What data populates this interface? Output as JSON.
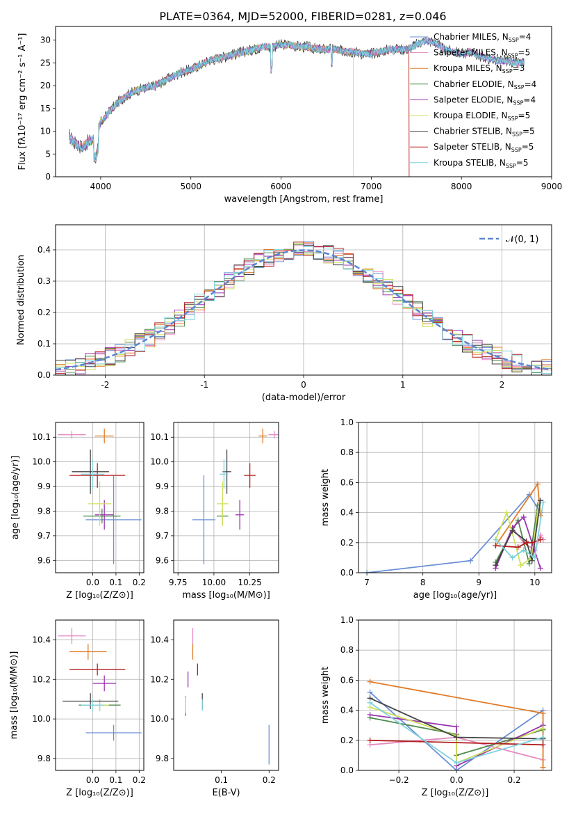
{
  "title": "PLATE=0364, MJD=52000, FIBERID=0281, z=0.046",
  "colors": {
    "Chabrier MILES": "#6b8fd6",
    "Salpeter MILES": "#e58ac0",
    "Kroupa MILES": "#e07b28",
    "Chabrier ELODIE": "#4f8a4f",
    "Salpeter ELODIE": "#9a35b0",
    "Kroupa ELODIE": "#cfe05a",
    "Chabrier STELIB": "#444444",
    "Salpeter STELIB": "#b52020",
    "Kroupa STELIB": "#7fd2dc",
    "gaussian": "#5b86d0"
  },
  "chart_data": [
    {
      "id": "spectrum",
      "type": "line",
      "title": "PLATE=0364, MJD=52000, FIBERID=0281, z=0.046",
      "xlabel": "wavelength [Angstrom, rest frame]",
      "ylabel": "Flux [fλ10⁻¹⁷ erg cm⁻² s⁻¹ A⁻¹]",
      "xlim": [
        3500,
        9000
      ],
      "ylim": [
        0,
        33
      ],
      "xticks": [
        4000,
        5000,
        6000,
        7000,
        8000,
        9000
      ],
      "yticks": [
        0,
        5,
        10,
        15,
        20,
        25,
        30
      ],
      "legend_position": "upper-right",
      "legend": [
        {
          "series": "Chabrier MILES",
          "label": "Chabrier MILES, N",
          "sub": "SSP",
          "tail": "=4"
        },
        {
          "series": "Salpeter MILES",
          "label": "Salpeter MILES, N",
          "sub": "SSP",
          "tail": "=5"
        },
        {
          "series": "Kroupa MILES",
          "label": "Kroupa MILES, N",
          "sub": "SSP",
          "tail": "=3"
        },
        {
          "series": "Chabrier ELODIE",
          "label": "Chabrier ELODIE, N",
          "sub": "SSP",
          "tail": "=4"
        },
        {
          "series": "Salpeter ELODIE",
          "label": "Salpeter ELODIE, N",
          "sub": "SSP",
          "tail": "=4"
        },
        {
          "series": "Kroupa ELODIE",
          "label": "Kroupa ELODIE, N",
          "sub": "SSP",
          "tail": "=5"
        },
        {
          "series": "Chabrier STELIB",
          "label": "Chabrier STELIB, N",
          "sub": "SSP",
          "tail": "=5"
        },
        {
          "series": "Salpeter STELIB",
          "label": "Salpeter STELIB, N",
          "sub": "SSP",
          "tail": "=5"
        },
        {
          "series": "Kroupa STELIB",
          "label": "Kroupa STELIB, N",
          "sub": "SSP",
          "tail": "=5"
        }
      ],
      "continuum": {
        "x": [
          3650,
          3700,
          3750,
          3800,
          3850,
          3900,
          3950,
          4000,
          4050,
          4100,
          4200,
          4300,
          4400,
          4500,
          4600,
          4700,
          4800,
          4900,
          5000,
          5100,
          5200,
          5300,
          5400,
          5500,
          5600,
          5700,
          5800,
          5900,
          6000,
          6100,
          6200,
          6300,
          6400,
          6500,
          6600,
          6700,
          6800,
          6900,
          7000,
          7100,
          7200,
          7300,
          7400,
          7500,
          7600,
          7700,
          7800,
          7900,
          8000,
          8100,
          8200,
          8300,
          8400,
          8500,
          8600,
          8700
        ],
        "y": [
          9,
          7.5,
          7,
          6.5,
          7.5,
          8,
          8.5,
          12,
          13,
          14.5,
          16.5,
          18,
          19,
          19.5,
          20,
          21,
          22,
          23,
          23.5,
          24.5,
          25.5,
          26,
          26.5,
          27,
          27.5,
          28,
          28.5,
          28.5,
          29,
          29,
          28.5,
          28.5,
          28,
          28,
          28,
          27.5,
          27.5,
          27,
          27,
          27.5,
          28,
          28,
          28,
          29,
          30,
          29.5,
          28,
          27.5,
          27,
          27.5,
          26.5,
          26,
          25.5,
          25.5,
          25,
          25
        ]
      },
      "truncated_series": [
        {
          "series": "Kroupa ELODIE",
          "x_end": 6800
        },
        {
          "series": "Salpeter STELIB",
          "x_end": 7420
        },
        {
          "series": "Kroupa MILES",
          "x_end": 7420
        }
      ]
    },
    {
      "id": "residuals",
      "type": "histogram",
      "xlabel": "(data-model)/error",
      "ylabel": "Normed distribution",
      "xlim": [
        -2.5,
        2.5
      ],
      "ylim": [
        0,
        0.48
      ],
      "xticks": [
        -2,
        -1,
        0,
        1,
        2
      ],
      "yticks": [
        0.0,
        0.1,
        0.2,
        0.3,
        0.4
      ],
      "grid": true,
      "legend_position": "upper-right",
      "legend": [
        {
          "series": "gaussian",
          "label": "𝒩(0, 1)"
        }
      ],
      "gaussian": {
        "mean": 0,
        "sigma": 1,
        "style": "dashed"
      },
      "bin_width": 0.1
    },
    {
      "id": "z-age",
      "type": "errorbar",
      "xlabel": "Z [log₁₀(Z/Z⊙)]",
      "ylabel": "age  [log₁₀(age/yr)]",
      "xlim": [
        -0.16,
        0.22
      ],
      "ylim": [
        9.55,
        10.16
      ],
      "xticks": [
        0.0,
        0.1,
        0.2
      ],
      "xticklabels": [
        "0.0",
        "0.1",
        "0.2"
      ],
      "yticks": [
        9.6,
        9.7,
        9.8,
        9.9,
        10.0,
        10.1
      ],
      "grid": true,
      "points": [
        {
          "series": "Chabrier MILES",
          "x": 0.09,
          "y": 9.765,
          "xerr": 0.12,
          "yerr": 0.18
        },
        {
          "series": "Salpeter MILES",
          "x": -0.09,
          "y": 10.11,
          "xerr": 0.06,
          "yerr": 0.015
        },
        {
          "series": "Kroupa MILES",
          "x": 0.05,
          "y": 10.105,
          "xerr": 0.04,
          "yerr": 0.03
        },
        {
          "series": "Chabrier ELODIE",
          "x": 0.04,
          "y": 9.78,
          "xerr": 0.08,
          "yerr": 0.03
        },
        {
          "series": "Salpeter ELODIE",
          "x": 0.05,
          "y": 9.785,
          "xerr": 0.04,
          "yerr": 0.06
        },
        {
          "series": "Kroupa ELODIE",
          "x": 0.03,
          "y": 9.83,
          "xerr": 0.05,
          "yerr": 0.09
        },
        {
          "series": "Chabrier STELIB",
          "x": -0.01,
          "y": 9.96,
          "xerr": 0.08,
          "yerr": 0.09
        },
        {
          "series": "Salpeter STELIB",
          "x": 0.02,
          "y": 9.945,
          "xerr": 0.12,
          "yerr": 0.05
        },
        {
          "series": "Kroupa STELIB",
          "x": 0.0,
          "y": 9.95,
          "xerr": 0.05,
          "yerr": 0.06
        }
      ]
    },
    {
      "id": "mass-age",
      "type": "errorbar",
      "xlabel": "mass [log₁₀(M/M⊙)]",
      "ylabel": "",
      "xlim": [
        9.72,
        10.45
      ],
      "ylim": [
        9.55,
        10.16
      ],
      "xticks": [
        9.75,
        10.0,
        10.25
      ],
      "xticklabels": [
        "9.75",
        "10.00",
        "10.25"
      ],
      "yticks": [
        9.6,
        9.7,
        9.8,
        9.9,
        10.0,
        10.1
      ],
      "grid": true,
      "points": [
        {
          "series": "Chabrier MILES",
          "x": 9.93,
          "y": 9.765,
          "xerr": 0.08,
          "yerr": 0.18
        },
        {
          "series": "Salpeter MILES",
          "x": 10.42,
          "y": 10.11,
          "xerr": 0.04,
          "yerr": 0.015
        },
        {
          "series": "Kroupa MILES",
          "x": 10.34,
          "y": 10.105,
          "xerr": 0.03,
          "yerr": 0.03
        },
        {
          "series": "Chabrier ELODIE",
          "x": 10.06,
          "y": 9.78,
          "xerr": 0.04,
          "yerr": 0.03
        },
        {
          "series": "Salpeter ELODIE",
          "x": 10.18,
          "y": 9.785,
          "xerr": 0.03,
          "yerr": 0.06
        },
        {
          "series": "Kroupa ELODIE",
          "x": 10.06,
          "y": 9.83,
          "xerr": 0.04,
          "yerr": 0.09
        },
        {
          "series": "Chabrier STELIB",
          "x": 10.09,
          "y": 9.96,
          "xerr": 0.03,
          "yerr": 0.09
        },
        {
          "series": "Salpeter STELIB",
          "x": 10.25,
          "y": 9.945,
          "xerr": 0.04,
          "yerr": 0.05
        },
        {
          "series": "Kroupa STELIB",
          "x": 10.07,
          "y": 9.95,
          "xerr": 0.03,
          "yerr": 0.06
        }
      ]
    },
    {
      "id": "age-weight",
      "type": "line",
      "xlabel": "age  [log₁₀(age/yr)]",
      "ylabel": "mass weight",
      "xlim": [
        6.85,
        10.3
      ],
      "ylim": [
        0.0,
        1.0
      ],
      "xticks": [
        7,
        8,
        9,
        10
      ],
      "yticks": [
        0.0,
        0.2,
        0.4,
        0.6,
        0.8,
        1.0
      ],
      "grid": true,
      "series": [
        {
          "series": "Chabrier MILES",
          "x": [
            7.0,
            8.85,
            9.9,
            10.1
          ],
          "y": [
            0.0,
            0.08,
            0.52,
            0.4
          ]
        },
        {
          "series": "Salpeter MILES",
          "x": [
            9.3,
            9.6,
            9.8,
            10.0,
            10.1,
            10.15
          ],
          "y": [
            0.05,
            0.3,
            0.2,
            0.15,
            0.25,
            0.22
          ]
        },
        {
          "series": "Kroupa MILES",
          "x": [
            9.3,
            10.05,
            10.1
          ],
          "y": [
            0.18,
            0.59,
            0.38
          ]
        },
        {
          "series": "Chabrier ELODIE",
          "x": [
            9.3,
            9.7,
            9.9,
            10.05
          ],
          "y": [
            0.07,
            0.35,
            0.06,
            0.45
          ]
        },
        {
          "series": "Salpeter ELODIE",
          "x": [
            9.3,
            9.6,
            9.8,
            9.95,
            10.1
          ],
          "y": [
            0.03,
            0.3,
            0.37,
            0.2,
            0.03
          ]
        },
        {
          "series": "Kroupa ELODIE",
          "x": [
            9.3,
            9.5,
            9.75,
            9.95,
            10.05
          ],
          "y": [
            0.22,
            0.4,
            0.05,
            0.1,
            0.41
          ]
        },
        {
          "series": "Chabrier STELIB",
          "x": [
            9.3,
            9.6,
            9.85,
            9.95,
            10.1
          ],
          "y": [
            0.05,
            0.28,
            0.21,
            0.08,
            0.48
          ]
        },
        {
          "series": "Salpeter STELIB",
          "x": [
            9.3,
            9.7,
            9.85,
            9.95,
            10.1
          ],
          "y": [
            0.18,
            0.17,
            0.2,
            0.2,
            0.22
          ]
        },
        {
          "series": "Kroupa STELIB",
          "x": [
            9.3,
            9.6,
            9.8,
            10.0,
            10.15
          ],
          "y": [
            0.22,
            0.1,
            0.15,
            0.1,
            0.47
          ]
        }
      ]
    },
    {
      "id": "z-mass",
      "type": "errorbar",
      "xlabel": "Z [log₁₀(Z/Z⊙)]",
      "ylabel": "mass [log₁₀(M/M⊙)]",
      "xlim": [
        -0.16,
        0.22
      ],
      "ylim": [
        9.74,
        10.5
      ],
      "xticks": [
        0.0,
        0.1,
        0.2
      ],
      "xticklabels": [
        "0.0",
        "0.1",
        "0.2"
      ],
      "yticks": [
        9.8,
        10.0,
        10.2,
        10.4
      ],
      "grid": true,
      "points": [
        {
          "series": "Chabrier MILES",
          "x": 0.09,
          "y": 9.93,
          "xerr": 0.12,
          "yerr": 0.04
        },
        {
          "series": "Salpeter MILES",
          "x": -0.09,
          "y": 10.42,
          "xerr": 0.06,
          "yerr": 0.04
        },
        {
          "series": "Kroupa MILES",
          "x": -0.02,
          "y": 10.34,
          "xerr": 0.08,
          "yerr": 0.04
        },
        {
          "series": "Chabrier ELODIE",
          "x": 0.03,
          "y": 10.07,
          "xerr": 0.09,
          "yerr": 0.03
        },
        {
          "series": "Salpeter ELODIE",
          "x": 0.05,
          "y": 10.18,
          "xerr": 0.05,
          "yerr": 0.04
        },
        {
          "series": "Kroupa ELODIE",
          "x": 0.03,
          "y": 10.07,
          "xerr": 0.04,
          "yerr": 0.03
        },
        {
          "series": "Chabrier STELIB",
          "x": -0.01,
          "y": 10.09,
          "xerr": 0.12,
          "yerr": 0.04
        },
        {
          "series": "Salpeter STELIB",
          "x": 0.02,
          "y": 10.25,
          "xerr": 0.12,
          "yerr": 0.03
        },
        {
          "series": "Kroupa STELIB",
          "x": 0.0,
          "y": 10.07,
          "xerr": 0.05,
          "yerr": 0.03
        }
      ]
    },
    {
      "id": "ebv-mass",
      "type": "errorbar",
      "xlabel": "E(B-V)",
      "ylabel": "",
      "xlim": [
        0.0,
        0.22
      ],
      "ylim": [
        9.74,
        10.5
      ],
      "xticks": [
        0.1,
        0.2
      ],
      "xticklabels": [
        "0.1",
        "0.2"
      ],
      "yticks": [
        9.8,
        10.0,
        10.2,
        10.4
      ],
      "grid": false,
      "points": [
        {
          "series": "Chabrier MILES",
          "x": 0.2,
          "y": 9.87,
          "xerr": 0.0,
          "yerr": 0.1
        },
        {
          "series": "Salpeter MILES",
          "x": 0.04,
          "y": 10.42,
          "xerr": 0.0,
          "yerr": 0.04
        },
        {
          "series": "Kroupa MILES",
          "x": 0.04,
          "y": 10.34,
          "xerr": 0.0,
          "yerr": 0.04
        },
        {
          "series": "Chabrier ELODIE",
          "x": 0.025,
          "y": 10.065,
          "xerr": 0.0,
          "yerr": 0.05
        },
        {
          "series": "Salpeter ELODIE",
          "x": 0.03,
          "y": 10.2,
          "xerr": 0.0,
          "yerr": 0.04
        },
        {
          "series": "Kroupa ELODIE",
          "x": 0.025,
          "y": 10.07,
          "xerr": 0.0,
          "yerr": 0.04
        },
        {
          "series": "Chabrier STELIB",
          "x": 0.06,
          "y": 10.09,
          "xerr": 0.0,
          "yerr": 0.04
        },
        {
          "series": "Salpeter STELIB",
          "x": 0.05,
          "y": 10.25,
          "xerr": 0.0,
          "yerr": 0.03
        },
        {
          "series": "Kroupa STELIB",
          "x": 0.06,
          "y": 10.07,
          "xerr": 0.0,
          "yerr": 0.03
        }
      ]
    },
    {
      "id": "z-weight",
      "type": "line",
      "xlabel": "Z [log₁₀(Z/Z⊙)]",
      "ylabel": "mass weight",
      "xlim": [
        -0.34,
        0.33
      ],
      "ylim": [
        0.0,
        1.0
      ],
      "xticks": [
        -0.2,
        0.0,
        0.2
      ],
      "xticklabels": [
        "−0.2",
        "0.0",
        "0.2"
      ],
      "yticks": [
        0.0,
        0.2,
        0.4,
        0.6,
        0.8,
        1.0
      ],
      "grid": true,
      "series": [
        {
          "series": "Chabrier MILES",
          "x": [
            -0.3,
            0.0,
            0.3
          ],
          "y": [
            0.52,
            0.0,
            0.4
          ]
        },
        {
          "series": "Salpeter MILES",
          "x": [
            -0.3,
            0.0,
            0.3
          ],
          "y": [
            0.17,
            0.22,
            0.07
          ]
        },
        {
          "series": "Kroupa MILES",
          "x": [
            -0.3,
            0.3,
            0.3
          ],
          "y": [
            0.59,
            0.38,
            0.02
          ]
        },
        {
          "series": "Chabrier ELODIE",
          "x": [
            -0.3,
            0.0,
            0.0,
            0.3
          ],
          "y": [
            0.35,
            0.24,
            0.1,
            0.27
          ]
        },
        {
          "series": "Salpeter ELODIE",
          "x": [
            -0.3,
            0.0,
            0.0,
            0.3
          ],
          "y": [
            0.37,
            0.29,
            0.03,
            0.3
          ]
        },
        {
          "series": "Kroupa ELODIE",
          "x": [
            -0.3,
            0.0,
            0.0,
            0.3
          ],
          "y": [
            0.42,
            0.23,
            0.05,
            0.28
          ]
        },
        {
          "series": "Chabrier STELIB",
          "x": [
            -0.3,
            0.0,
            0.3
          ],
          "y": [
            0.48,
            0.22,
            0.21
          ]
        },
        {
          "series": "Salpeter STELIB",
          "x": [
            -0.3,
            0.3
          ],
          "y": [
            0.2,
            0.17
          ]
        },
        {
          "series": "Kroupa STELIB",
          "x": [
            -0.3,
            0.0,
            0.3
          ],
          "y": [
            0.45,
            0.05,
            0.22
          ]
        }
      ]
    }
  ]
}
